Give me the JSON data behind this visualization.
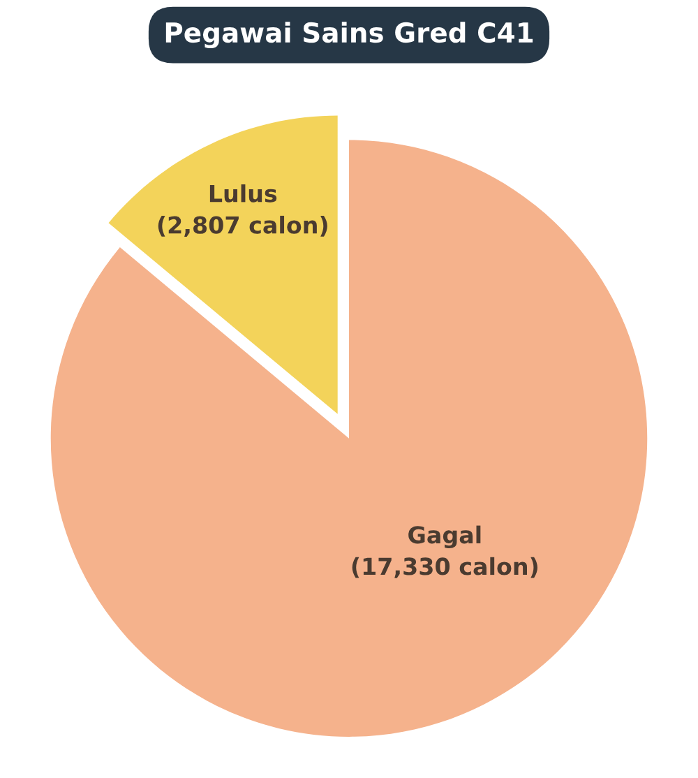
{
  "chart_data": {
    "type": "pie",
    "title": "Pegawai Sains Gred C41",
    "categories": [
      "Lulus",
      "Gagal"
    ],
    "values": [
      2807,
      17330
    ],
    "value_labels": [
      "(2,807 calon)",
      "(17,330 calon)"
    ],
    "colors": [
      "#f3d35a",
      "#f5b28c"
    ],
    "legend": false
  }
}
